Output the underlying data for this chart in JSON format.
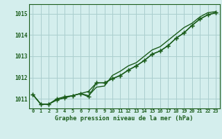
{
  "title": "Graphe pression niveau de la mer (hPa)",
  "bg_color": "#d4eeed",
  "grid_color": "#aacece",
  "line_color": "#1a5c1a",
  "ylim": [
    1010.55,
    1015.45
  ],
  "yticks": [
    1011,
    1012,
    1013,
    1014,
    1015
  ],
  "xlim": [
    -0.5,
    23.5
  ],
  "xticks": [
    0,
    1,
    2,
    3,
    4,
    5,
    6,
    7,
    8,
    9,
    10,
    11,
    12,
    13,
    14,
    15,
    16,
    17,
    18,
    19,
    20,
    21,
    22,
    23
  ],
  "line_upper": [
    1011.2,
    1010.75,
    1010.75,
    1010.95,
    1011.05,
    1011.15,
    1011.25,
    1011.15,
    1011.55,
    1011.6,
    1012.1,
    1012.3,
    1012.55,
    1012.7,
    1013.0,
    1013.3,
    1013.45,
    1013.75,
    1014.05,
    1014.35,
    1014.55,
    1014.85,
    1015.05,
    1015.1
  ],
  "line_mid": [
    1011.2,
    1010.75,
    1010.75,
    1010.95,
    1011.05,
    1011.15,
    1011.25,
    1011.35,
    1011.75,
    1011.75,
    1011.95,
    1012.1,
    1012.35,
    1012.55,
    1012.8,
    1013.1,
    1013.25,
    1013.5,
    1013.85,
    1014.1,
    1014.45,
    1014.75,
    1014.95,
    1015.05
  ],
  "line_low": [
    1011.2,
    1010.75,
    1010.75,
    1011.0,
    1011.1,
    1011.15,
    1011.25,
    1011.1,
    1011.75,
    1011.75,
    1011.95,
    1012.1,
    1012.35,
    1012.55,
    1012.8,
    1013.1,
    1013.25,
    1013.5,
    1013.85,
    1014.1,
    1014.45,
    1014.75,
    1014.95,
    1015.05
  ]
}
